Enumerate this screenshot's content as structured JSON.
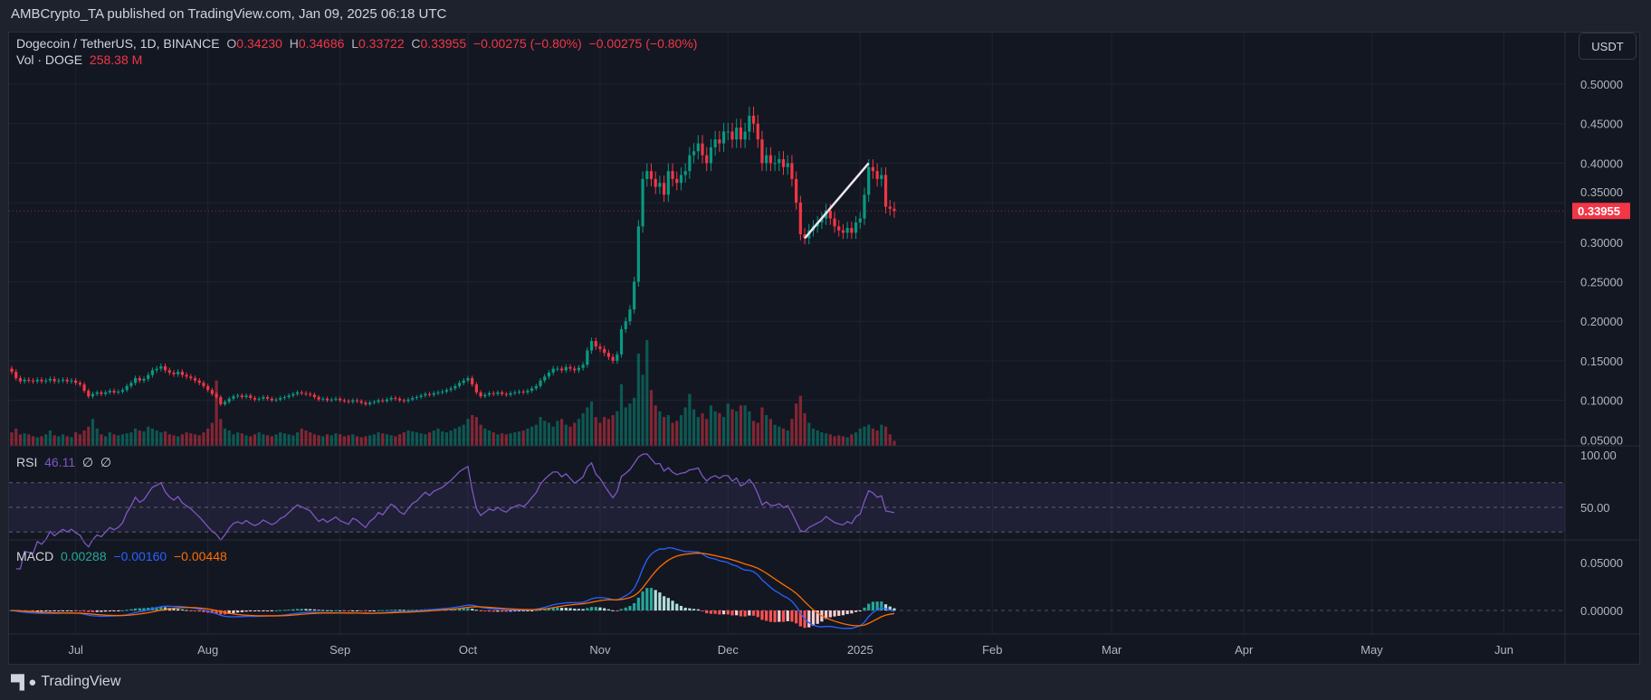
{
  "publisher_line": "AMBCrypto_TA published on TradingView.com, Jan 09, 2025 06:18 UTC",
  "legend": {
    "symbol": "Dogecoin / TetherUS, 1D, BINANCE",
    "o_label": "O",
    "o": "0.34230",
    "h_label": "H",
    "h": "0.34686",
    "l_label": "L",
    "l": "0.33722",
    "c_label": "C",
    "c": "0.33955",
    "change1": "−0.00275 (−0.80%)",
    "change2": "−0.00275 (−0.80%)",
    "vol_label": "Vol · DOGE",
    "vol": "258.38 M"
  },
  "currency_button": "USDT",
  "rsi_legend": {
    "label": "RSI",
    "value": "46.11",
    "extra1": "∅",
    "extra2": "∅"
  },
  "macd_legend": {
    "label": "MACD",
    "hist": "0.00288",
    "macd": "−0.00160",
    "signal": "−0.00448"
  },
  "footer_brand": "TradingView",
  "colors": {
    "up": "#089981",
    "down": "#f23645",
    "rsi": "#7e57c2",
    "macd": "#2962ff",
    "signal": "#ff6d00",
    "last_price": "#f23645"
  },
  "chart_data": [
    {
      "type": "candlestick",
      "title": "Dogecoin / TetherUS, 1D, BINANCE",
      "start_date": "2024-06-16",
      "end_date": "2025-01-09",
      "first_open": 0.14,
      "close": [
        0.136,
        0.128,
        0.124,
        0.126,
        0.125,
        0.124,
        0.126,
        0.124,
        0.125,
        0.127,
        0.124,
        0.125,
        0.126,
        0.124,
        0.125,
        0.122,
        0.12,
        0.112,
        0.105,
        0.108,
        0.11,
        0.108,
        0.11,
        0.112,
        0.11,
        0.111,
        0.113,
        0.118,
        0.122,
        0.128,
        0.125,
        0.127,
        0.132,
        0.138,
        0.14,
        0.143,
        0.138,
        0.135,
        0.133,
        0.136,
        0.132,
        0.13,
        0.128,
        0.125,
        0.122,
        0.118,
        0.113,
        0.108,
        0.104,
        0.095,
        0.098,
        0.102,
        0.105,
        0.106,
        0.104,
        0.106,
        0.103,
        0.101,
        0.102,
        0.104,
        0.102,
        0.1,
        0.101,
        0.103,
        0.104,
        0.106,
        0.108,
        0.11,
        0.109,
        0.108,
        0.107,
        0.104,
        0.101,
        0.102,
        0.1,
        0.101,
        0.102,
        0.1,
        0.099,
        0.098,
        0.1,
        0.099,
        0.097,
        0.095,
        0.097,
        0.098,
        0.1,
        0.099,
        0.101,
        0.103,
        0.102,
        0.1,
        0.099,
        0.101,
        0.103,
        0.104,
        0.106,
        0.108,
        0.107,
        0.109,
        0.11,
        0.111,
        0.113,
        0.115,
        0.118,
        0.122,
        0.125,
        0.128,
        0.12,
        0.11,
        0.105,
        0.107,
        0.109,
        0.108,
        0.11,
        0.108,
        0.107,
        0.109,
        0.11,
        0.111,
        0.11,
        0.112,
        0.115,
        0.118,
        0.125,
        0.13,
        0.135,
        0.14,
        0.14,
        0.138,
        0.142,
        0.14,
        0.138,
        0.141,
        0.145,
        0.163,
        0.175,
        0.168,
        0.165,
        0.16,
        0.155,
        0.15,
        0.158,
        0.19,
        0.2,
        0.215,
        0.25,
        0.32,
        0.38,
        0.39,
        0.38,
        0.37,
        0.375,
        0.36,
        0.39,
        0.38,
        0.375,
        0.385,
        0.39,
        0.41,
        0.415,
        0.425,
        0.41,
        0.4,
        0.42,
        0.43,
        0.425,
        0.44,
        0.44,
        0.43,
        0.445,
        0.43,
        0.44,
        0.46,
        0.45,
        0.43,
        0.4,
        0.41,
        0.4,
        0.4,
        0.405,
        0.395,
        0.4,
        0.38,
        0.35,
        0.31,
        0.305,
        0.315,
        0.32,
        0.325,
        0.33,
        0.34,
        0.33,
        0.32,
        0.315,
        0.312,
        0.318,
        0.312,
        0.325,
        0.33,
        0.36,
        0.395,
        0.39,
        0.38,
        0.385,
        0.345,
        0.3423,
        0.33955
      ],
      "volume_millions": [
        700,
        900,
        600,
        650,
        600,
        500,
        450,
        500,
        600,
        800,
        550,
        500,
        600,
        500,
        450,
        700,
        600,
        800,
        1000,
        1400,
        900,
        600,
        500,
        700,
        600,
        550,
        600,
        650,
        700,
        900,
        800,
        750,
        1000,
        900,
        800,
        700,
        750,
        600,
        550,
        500,
        600,
        700,
        650,
        600,
        550,
        700,
        900,
        1200,
        3400,
        1400,
        900,
        800,
        600,
        700,
        650,
        550,
        500,
        600,
        700,
        600,
        550,
        500,
        600,
        700,
        650,
        600,
        550,
        700,
        900,
        800,
        700,
        600,
        550,
        500,
        600,
        550,
        650,
        600,
        500,
        550,
        600,
        500,
        450,
        500,
        550,
        600,
        700,
        650,
        600,
        550,
        500,
        600,
        700,
        800,
        750,
        700,
        650,
        600,
        700,
        800,
        900,
        750,
        700,
        800,
        900,
        1000,
        1100,
        1400,
        1600,
        1500,
        1100,
        900,
        800,
        700,
        600,
        650,
        600,
        650,
        700,
        750,
        800,
        900,
        1000,
        1100,
        1500,
        1300,
        1200,
        1000,
        1300,
        1400,
        1100,
        1000,
        1200,
        1400,
        1700,
        2000,
        2300,
        1500,
        1200,
        1500,
        1400,
        1600,
        1800,
        3200,
        2000,
        2200,
        2500,
        4800,
        3700,
        5500,
        2900,
        2100,
        1800,
        1500,
        1600,
        1200,
        1300,
        1600,
        2000,
        2700,
        1900,
        1500,
        1700,
        1400,
        2100,
        1800,
        1700,
        1500,
        2200,
        1900,
        1800,
        2100,
        2100,
        1800,
        1300,
        1200,
        2000,
        1600,
        1400,
        1100,
        1000,
        900,
        800,
        1400,
        2200,
        2600,
        1700,
        1200,
        900,
        800,
        700,
        650,
        600,
        500,
        550,
        500,
        450,
        600,
        700,
        900,
        1000,
        1100,
        900,
        800,
        1100,
        1000,
        600,
        258.38
      ],
      "last_price": "0.33955",
      "y_ticks": [
        "0.50000",
        "0.45000",
        "0.40000",
        "0.35000",
        "0.30000",
        "0.25000",
        "0.20000",
        "0.15000",
        "0.10000",
        "0.05000"
      ],
      "ylim": [
        0.0,
        0.5
      ],
      "x_ticks": [
        {
          "label": "Jul",
          "date": "2024-07-01"
        },
        {
          "label": "Aug",
          "date": "2024-08-01"
        },
        {
          "label": "Sep",
          "date": "2024-09-01"
        },
        {
          "label": "Oct",
          "date": "2024-10-01"
        },
        {
          "label": "Nov",
          "date": "2024-11-01"
        },
        {
          "label": "Dec",
          "date": "2024-12-01"
        },
        {
          "label": "2025",
          "date": "2025-01-01"
        },
        {
          "label": "Feb",
          "date": "2025-02-01"
        },
        {
          "label": "Mar",
          "date": "2025-03-01"
        },
        {
          "label": "Apr",
          "date": "2025-04-01"
        },
        {
          "label": "May",
          "date": "2025-05-01"
        },
        {
          "label": "Jun",
          "date": "2025-06-01"
        }
      ],
      "x_range": [
        "2024-06-16",
        "2025-06-17"
      ],
      "trendline": [
        {
          "date": "2024-12-19",
          "price": 0.305
        },
        {
          "date": "2025-01-03",
          "price": 0.4
        }
      ],
      "grid": true
    },
    {
      "type": "line",
      "title": "RSI",
      "period": 14,
      "y_ticks": [
        "100.00",
        "50.00"
      ],
      "band": [
        30,
        70
      ],
      "ylim": [
        0,
        100
      ]
    },
    {
      "type": "line+histogram",
      "title": "MACD",
      "params": [
        12,
        26,
        9
      ],
      "y_ticks": [
        "0.05000",
        "0.00000"
      ]
    }
  ]
}
